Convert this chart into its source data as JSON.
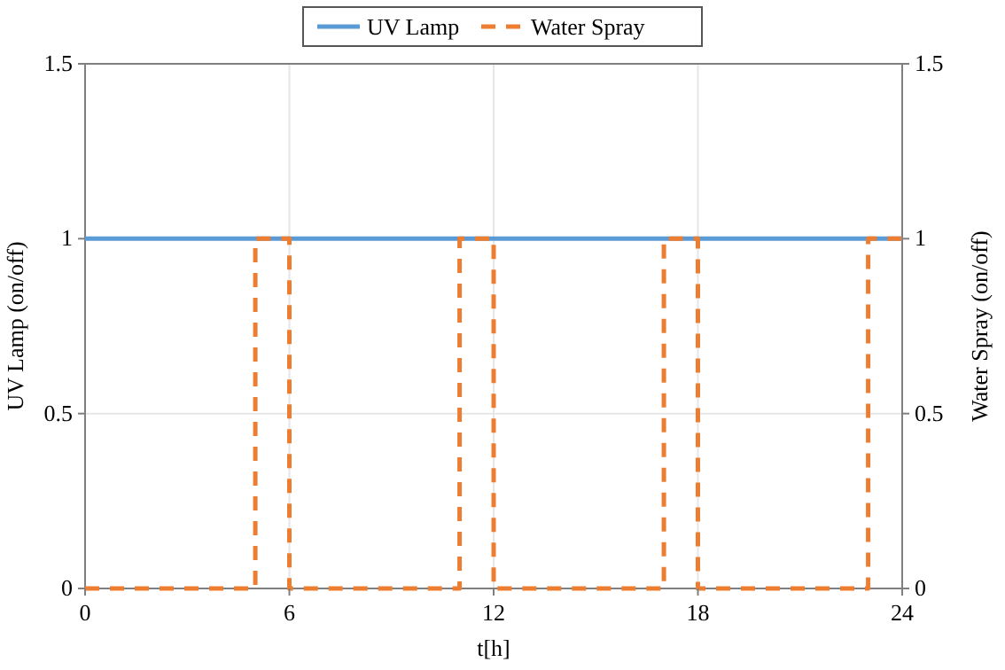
{
  "chart_data": {
    "type": "line",
    "xlabel": "t[h]",
    "ylabel": "UV Lamp (on/off)",
    "y2label": "Water Spray (on/off)",
    "series": [
      {
        "name": "UV Lamp",
        "color": "#5b9bd5",
        "x": [
          0,
          24
        ],
        "values": [
          1,
          1
        ],
        "line_style": "solid"
      },
      {
        "name": "Water Spray",
        "color": "#ed7d31",
        "axis": "y2",
        "line_style": "dashed",
        "x": [
          0,
          5,
          5,
          6,
          6,
          11,
          11,
          12,
          12,
          17,
          17,
          18,
          18,
          23,
          23,
          24
        ],
        "values": [
          0,
          0,
          1,
          1,
          0,
          0,
          1,
          1,
          0,
          0,
          1,
          1,
          0,
          0,
          1,
          1
        ]
      }
    ],
    "xlim": [
      0,
      24
    ],
    "xticks": [
      0,
      6,
      12,
      18,
      24
    ],
    "ylim": [
      0,
      1.5
    ],
    "yticks": [
      0,
      0.5,
      1,
      1.5
    ],
    "y2lim": [
      0,
      1.5
    ],
    "y2ticks": [
      0,
      0.5,
      1,
      1.5
    ],
    "grid": true,
    "legend": "top"
  }
}
